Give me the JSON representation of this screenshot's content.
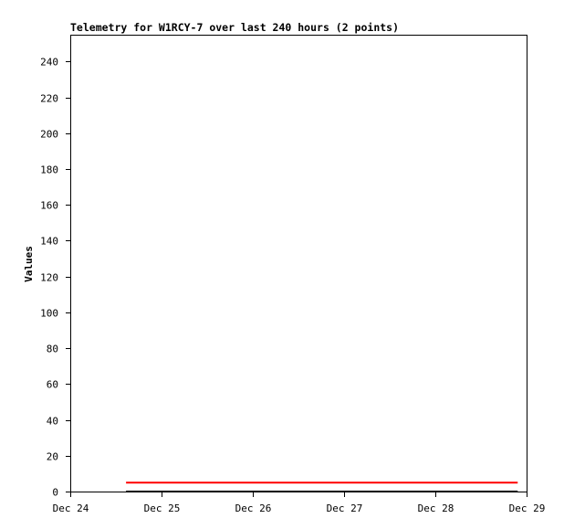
{
  "chart_data": {
    "type": "line",
    "title": "Telemetry for W1RCY-7 over last 240 hours (2 points)",
    "xlabel": "",
    "ylabel": "Values",
    "x_tick_labels": [
      "Dec 24",
      "Dec 25",
      "Dec 26",
      "Dec 27",
      "Dec 28",
      "Dec 29"
    ],
    "y_ticks": [
      0,
      20,
      40,
      60,
      80,
      100,
      120,
      140,
      160,
      180,
      200,
      220,
      240
    ],
    "xlim": [
      "Dec 24 00:00",
      "Dec 29 00:00"
    ],
    "ylim": [
      0,
      255
    ],
    "grid": false,
    "series": [
      {
        "color": "#ff0000",
        "x": [
          "Dec 24 14:40",
          "Dec 28 21:40"
        ],
        "values": [
          5,
          5
        ]
      },
      {
        "color": "#000000",
        "x": [
          "Dec 24 14:40",
          "Dec 28 21:40"
        ],
        "values": [
          0,
          0
        ]
      }
    ]
  }
}
